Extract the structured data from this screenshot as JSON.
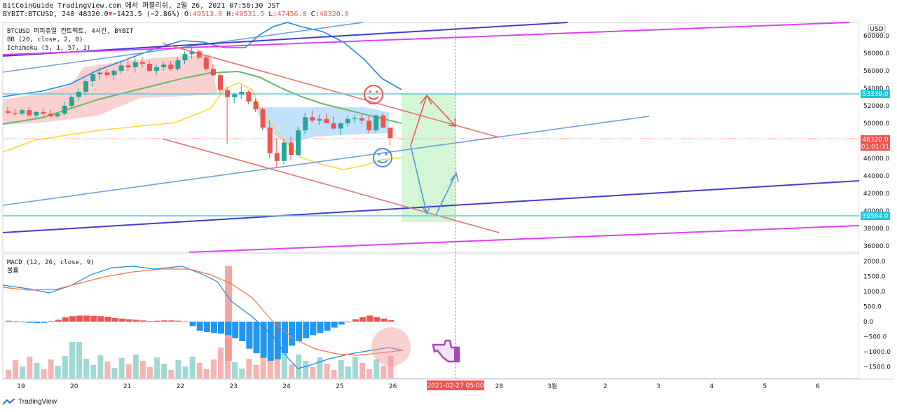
{
  "header": {
    "line1": "BitCoinGuide TradingView.com 에서 퍼블리쉬, 2월 26, 2021 07:58:30 JST",
    "symbol": "BYBIT:BTCUSD, 240 48320.0",
    "change_arrow": "▼",
    "change": "−1423.5 (−2.86%)",
    "o_label": "O:",
    "o": "49513.0",
    "h_label": "H:",
    "h": "49531.5",
    "l_label": "L:",
    "l": "47456.0",
    "c_label": "C:",
    "c": "48320.0"
  },
  "legend": {
    "title": "BTCUSD 퍼피츄얼 컨트랙트, 4시간, BYBIT",
    "bb": "BB (20, close, 2, 0)",
    "ichimoku": "Ichimoku (5, 1, 57, 1)",
    "macd": "MACD (12, 26, close, 9)",
    "volume": "볼륨"
  },
  "currency_label": "USD",
  "price_badges": {
    "current": "48320.0",
    "countdown": "01:01:31",
    "upper_line": "53339.0",
    "lower_line": "39564.0"
  },
  "time_badge": "2021-02-27  05:00",
  "footer": {
    "brand": "TradingView"
  },
  "colors": {
    "up": "#26a69a",
    "down": "#ef5350",
    "bb_upper": "#1e88e5",
    "bb_basis": "#66bb6a",
    "bb_lower": "#fdd835",
    "trend_blue": "#6fa0e0",
    "magenta": "#e040fb",
    "navy": "#3f3fd0",
    "channel": "#e57373",
    "hline": "#4dd0e1",
    "badge_hline": "#26c6da"
  },
  "chart_data": {
    "type": "candlestick",
    "price_axis": {
      "ticks": [
        60000,
        58000,
        56000,
        54000,
        52000,
        50000,
        48000,
        46000,
        44000,
        42000,
        40000,
        38000,
        36000
      ],
      "range": [
        35000,
        61500
      ]
    },
    "macd_axis": {
      "ticks": [
        "2000.0",
        "1500.0",
        "1000.0",
        "500.0",
        "0.0",
        "−500.0",
        "−1000.0",
        "−1500.0"
      ],
      "range": [
        -1750,
        2150
      ]
    },
    "x_ticks": [
      "19",
      "20",
      "21",
      "22",
      "23",
      "24",
      "25",
      "26",
      "27",
      "28",
      "3월",
      "2",
      "3",
      "4",
      "5",
      "6"
    ],
    "candles_ohlc": [
      [
        51400,
        51900,
        51000,
        51200
      ],
      [
        51200,
        51600,
        50800,
        51100
      ],
      [
        51100,
        51700,
        50900,
        51500
      ],
      [
        51500,
        51900,
        50700,
        50900
      ],
      [
        50900,
        51400,
        50600,
        51300
      ],
      [
        51300,
        51800,
        50900,
        51100
      ],
      [
        51100,
        51600,
        50700,
        50800
      ],
      [
        50800,
        51200,
        50600,
        51100
      ],
      [
        51100,
        52500,
        50900,
        52000
      ],
      [
        52000,
        53200,
        51600,
        53000
      ],
      [
        53000,
        54000,
        52500,
        53600
      ],
      [
        53600,
        55000,
        53200,
        54800
      ],
      [
        54800,
        56000,
        54200,
        55600
      ],
      [
        55600,
        56400,
        55000,
        55800
      ],
      [
        55800,
        56200,
        55200,
        55500
      ],
      [
        55500,
        56300,
        55000,
        56000
      ],
      [
        56000,
        57000,
        55700,
        56600
      ],
      [
        56600,
        57400,
        56000,
        56400
      ],
      [
        56400,
        57500,
        55800,
        57000
      ],
      [
        57000,
        57600,
        56400,
        56800
      ],
      [
        56800,
        57200,
        55800,
        56000
      ],
      [
        56000,
        56700,
        55500,
        56400
      ],
      [
        56400,
        57000,
        56000,
        56700
      ],
      [
        56700,
        57100,
        56000,
        56200
      ],
      [
        56200,
        57600,
        56000,
        57200
      ],
      [
        57200,
        58200,
        56800,
        57900
      ],
      [
        57900,
        58600,
        57400,
        58200
      ],
      [
        58200,
        58400,
        57300,
        57500
      ],
      [
        57500,
        57800,
        56000,
        56200
      ],
      [
        56200,
        56800,
        55400,
        55500
      ],
      [
        55500,
        55800,
        53400,
        53800
      ],
      [
        53800,
        54200,
        47600,
        53000
      ],
      [
        53000,
        53500,
        52300,
        53300
      ],
      [
        53300,
        54300,
        52800,
        53600
      ],
      [
        53600,
        53800,
        52200,
        52500
      ],
      [
        52500,
        52800,
        51300,
        51600
      ],
      [
        51600,
        51800,
        49200,
        49500
      ],
      [
        49500,
        50300,
        46000,
        46600
      ],
      [
        46600,
        48300,
        45000,
        45700
      ],
      [
        45700,
        48200,
        45300,
        47800
      ],
      [
        47800,
        48500,
        45800,
        46400
      ],
      [
        46400,
        49600,
        46200,
        49200
      ],
      [
        49200,
        51200,
        48800,
        50700
      ],
      [
        50700,
        51500,
        50100,
        50300
      ],
      [
        50300,
        51000,
        49800,
        50500
      ],
      [
        50500,
        51100,
        50000,
        50000
      ],
      [
        50000,
        50800,
        49200,
        49400
      ],
      [
        49400,
        50100,
        48700,
        50000
      ],
      [
        50000,
        50900,
        49600,
        50500
      ],
      [
        50500,
        51000,
        50000,
        50600
      ],
      [
        50600,
        51100,
        49900,
        50300
      ],
      [
        50300,
        50800,
        48900,
        49200
      ],
      [
        49200,
        51000,
        49000,
        50900
      ],
      [
        50900,
        51200,
        49800,
        49500
      ],
      [
        49500,
        49500,
        47500,
        48300
      ]
    ],
    "horizontal_levels": [
      53339,
      39564
    ],
    "volume_bar_count": 55,
    "macd_hist_sample": [
      30,
      10,
      -20,
      -40,
      -50,
      -40,
      20,
      60,
      140,
      180,
      200,
      200,
      190,
      180,
      160,
      120,
      100,
      80,
      60,
      40,
      20,
      30,
      40,
      40,
      30,
      0,
      -150,
      -300,
      -350,
      -380,
      -400,
      -450,
      -550,
      -650,
      -900,
      -1050,
      -1200,
      -1300,
      -1250,
      -1050,
      -800,
      -650,
      -550,
      -450,
      -380,
      -300,
      -200,
      -100,
      0,
      80,
      150,
      200,
      150,
      100,
      50
    ]
  }
}
